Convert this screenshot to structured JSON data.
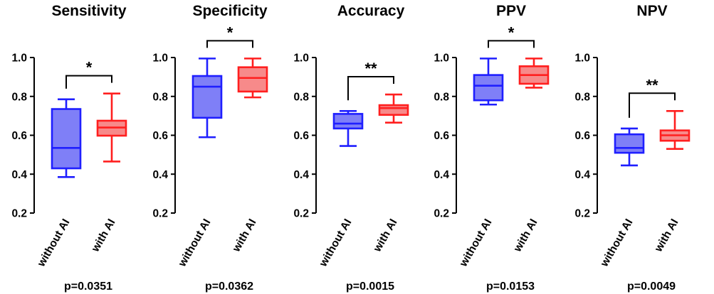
{
  "chart_data": [
    {
      "type": "box",
      "title": "Sensitivity",
      "categories": [
        "without AI",
        "with AI"
      ],
      "ylim": [
        0.2,
        1.0
      ],
      "yticks": [
        "0.2",
        "0.4",
        "0.6",
        "0.8",
        "1.0"
      ],
      "series": [
        {
          "min": 0.385,
          "q1": 0.43,
          "median": 0.535,
          "q3": 0.735,
          "max": 0.785,
          "color": "#1f1fff",
          "fill": "#7f7ff7"
        },
        {
          "min": 0.465,
          "q1": 0.598,
          "median": 0.64,
          "q3": 0.675,
          "max": 0.815,
          "color": "#ff1f1f",
          "fill": "#f78a8a"
        }
      ],
      "significance": "*",
      "p_value": "p=0.0351"
    },
    {
      "type": "box",
      "title": "Specificity",
      "categories": [
        "without AI",
        "with AI"
      ],
      "ylim": [
        0.2,
        1.0
      ],
      "yticks": [
        "0.2",
        "0.4",
        "0.6",
        "0.8",
        "1.0"
      ],
      "series": [
        {
          "min": 0.59,
          "q1": 0.69,
          "median": 0.85,
          "q3": 0.905,
          "max": 0.995,
          "color": "#1f1fff",
          "fill": "#7f7ff7"
        },
        {
          "min": 0.795,
          "q1": 0.825,
          "median": 0.895,
          "q3": 0.95,
          "max": 0.995,
          "color": "#ff1f1f",
          "fill": "#f78a8a"
        }
      ],
      "significance": "*",
      "p_value": "p=0.0362"
    },
    {
      "type": "box",
      "title": "Accuracy",
      "categories": [
        "without AI",
        "with AI"
      ],
      "ylim": [
        0.2,
        1.0
      ],
      "yticks": [
        "0.2",
        "0.4",
        "0.6",
        "0.8",
        "1.0"
      ],
      "series": [
        {
          "min": 0.545,
          "q1": 0.635,
          "median": 0.66,
          "q3": 0.71,
          "max": 0.725,
          "color": "#1f1fff",
          "fill": "#7f7ff7"
        },
        {
          "min": 0.665,
          "q1": 0.705,
          "median": 0.74,
          "q3": 0.755,
          "max": 0.81,
          "color": "#ff1f1f",
          "fill": "#f78a8a"
        }
      ],
      "significance": "**",
      "p_value": "p=0.0015"
    },
    {
      "type": "box",
      "title": "PPV",
      "categories": [
        "without AI",
        "with AI"
      ],
      "ylim": [
        0.2,
        1.0
      ],
      "yticks": [
        "0.2",
        "0.4",
        "0.6",
        "0.8",
        "1.0"
      ],
      "series": [
        {
          "min": 0.758,
          "q1": 0.78,
          "median": 0.855,
          "q3": 0.91,
          "max": 0.995,
          "color": "#1f1fff",
          "fill": "#7f7ff7"
        },
        {
          "min": 0.845,
          "q1": 0.865,
          "median": 0.91,
          "q3": 0.955,
          "max": 0.995,
          "color": "#ff1f1f",
          "fill": "#f78a8a"
        }
      ],
      "significance": "*",
      "p_value": "p=0.0153"
    },
    {
      "type": "box",
      "title": "NPV",
      "categories": [
        "without AI",
        "with AI"
      ],
      "ylim": [
        0.2,
        1.0
      ],
      "yticks": [
        "0.2",
        "0.4",
        "0.6",
        "0.8",
        "1.0"
      ],
      "series": [
        {
          "min": 0.445,
          "q1": 0.51,
          "median": 0.535,
          "q3": 0.605,
          "max": 0.635,
          "color": "#1f1fff",
          "fill": "#7f7ff7"
        },
        {
          "min": 0.53,
          "q1": 0.572,
          "median": 0.6,
          "q3": 0.625,
          "max": 0.725,
          "color": "#ff1f1f",
          "fill": "#f78a8a"
        }
      ],
      "significance": "**",
      "p_value": "p=0.0049"
    }
  ]
}
